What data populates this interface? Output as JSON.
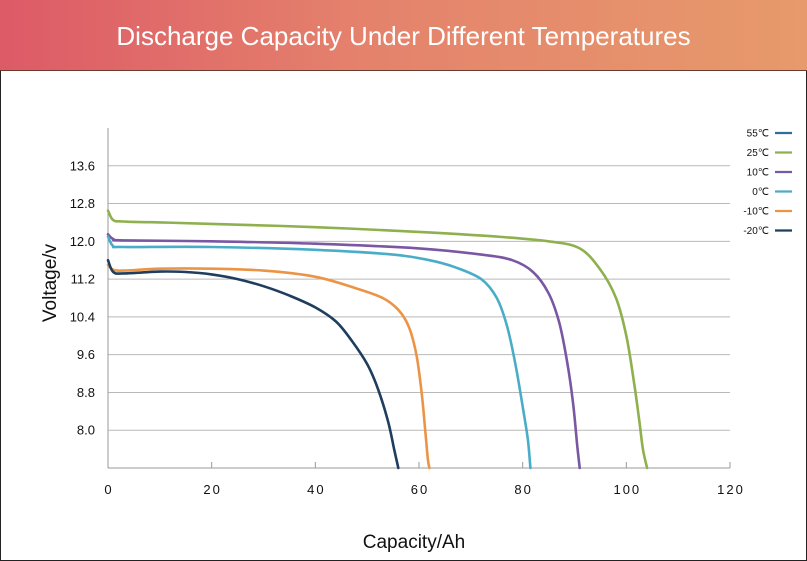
{
  "chart_data": {
    "type": "line",
    "title": "Discharge Capacity Under Different Temperatures",
    "xlabel": "Capacity/Ah",
    "ylabel": "Voltage/v",
    "xlim": [
      0,
      120
    ],
    "ylim": [
      7.2,
      14.4
    ],
    "x_ticks": [
      "0",
      "20",
      "40",
      "60",
      "80",
      "100",
      "120"
    ],
    "x_tick_values": [
      0,
      20,
      40,
      60,
      80,
      100,
      120
    ],
    "y_ticks": [
      "8.0",
      "8.8",
      "9.6",
      "10.4",
      "11.2",
      "12.0",
      "12.8",
      "13.6"
    ],
    "y_tick_values": [
      8.0,
      8.8,
      9.6,
      10.4,
      11.2,
      12.0,
      12.8,
      13.6
    ],
    "grid": "horizontal",
    "legend_position": "top-right",
    "series": [
      {
        "name": "55℃",
        "color": "#2f6e99",
        "points": []
      },
      {
        "name": "25℃",
        "color": "#8fb04e",
        "points": [
          [
            0,
            12.65
          ],
          [
            1,
            12.45
          ],
          [
            3,
            12.42
          ],
          [
            10,
            12.4
          ],
          [
            20,
            12.37
          ],
          [
            40,
            12.3
          ],
          [
            60,
            12.2
          ],
          [
            75,
            12.1
          ],
          [
            85,
            12.0
          ],
          [
            91,
            11.85
          ],
          [
            95,
            11.4
          ],
          [
            98,
            10.8
          ],
          [
            100,
            10.0
          ],
          [
            101.5,
            9.0
          ],
          [
            102.5,
            8.2
          ],
          [
            103.2,
            7.6
          ],
          [
            104,
            7.2
          ]
        ]
      },
      {
        "name": "10℃",
        "color": "#7a57a3",
        "points": [
          [
            0,
            12.15
          ],
          [
            1,
            12.05
          ],
          [
            3,
            12.02
          ],
          [
            20,
            12.0
          ],
          [
            40,
            11.95
          ],
          [
            60,
            11.85
          ],
          [
            72,
            11.72
          ],
          [
            78,
            11.6
          ],
          [
            82,
            11.35
          ],
          [
            85,
            10.9
          ],
          [
            87,
            10.3
          ],
          [
            88.5,
            9.5
          ],
          [
            89.7,
            8.6
          ],
          [
            90.5,
            7.7
          ],
          [
            91,
            7.2
          ]
        ]
      },
      {
        "name": "0℃",
        "color": "#4aadc8",
        "points": [
          [
            0,
            12.1
          ],
          [
            1,
            11.9
          ],
          [
            3,
            11.88
          ],
          [
            20,
            11.88
          ],
          [
            40,
            11.82
          ],
          [
            55,
            11.72
          ],
          [
            62,
            11.6
          ],
          [
            67,
            11.45
          ],
          [
            72,
            11.2
          ],
          [
            75,
            10.8
          ],
          [
            77,
            10.2
          ],
          [
            78.6,
            9.4
          ],
          [
            80,
            8.5
          ],
          [
            81,
            7.8
          ],
          [
            81.5,
            7.2
          ]
        ]
      },
      {
        "name": "-10℃",
        "color": "#ec9446",
        "points": [
          [
            0,
            11.5
          ],
          [
            1,
            11.4
          ],
          [
            3,
            11.38
          ],
          [
            10,
            11.42
          ],
          [
            20,
            11.42
          ],
          [
            30,
            11.38
          ],
          [
            40,
            11.25
          ],
          [
            48,
            11.0
          ],
          [
            53,
            10.8
          ],
          [
            56,
            10.55
          ],
          [
            58,
            10.2
          ],
          [
            59.5,
            9.6
          ],
          [
            60.5,
            8.8
          ],
          [
            61.2,
            8.0
          ],
          [
            61.7,
            7.4
          ],
          [
            62,
            7.2
          ]
        ]
      },
      {
        "name": "-20℃",
        "color": "#1f3d5c",
        "points": [
          [
            0,
            11.6
          ],
          [
            1,
            11.35
          ],
          [
            3,
            11.32
          ],
          [
            10,
            11.36
          ],
          [
            15,
            11.35
          ],
          [
            20,
            11.3
          ],
          [
            25,
            11.2
          ],
          [
            30,
            11.05
          ],
          [
            35,
            10.85
          ],
          [
            40,
            10.6
          ],
          [
            44,
            10.3
          ],
          [
            47,
            9.9
          ],
          [
            50,
            9.4
          ],
          [
            52,
            8.9
          ],
          [
            54,
            8.2
          ],
          [
            55.2,
            7.6
          ],
          [
            56,
            7.2
          ]
        ]
      }
    ]
  }
}
